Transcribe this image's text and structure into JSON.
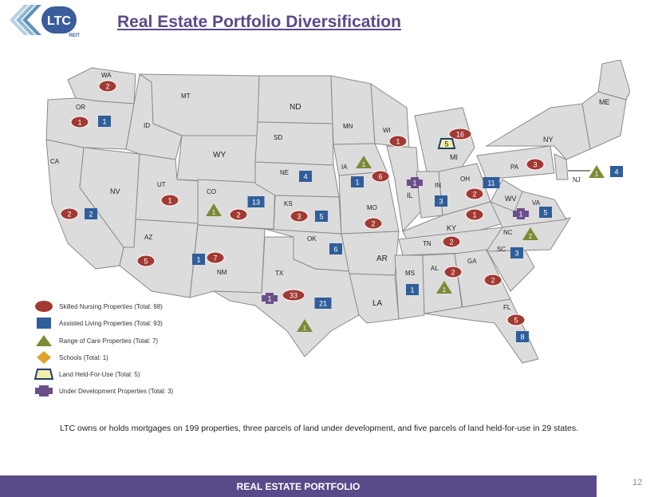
{
  "brand": {
    "logo_text": "LTC",
    "logo_sub": "REIT"
  },
  "title": "Real Estate Portfolio Diversification",
  "colors": {
    "snf": "#a23a32",
    "alf": "#2f5e9b",
    "roc": "#7a8b35",
    "school": "#e1a22b",
    "land": "#f3eea9",
    "dev": "#6b4f8a",
    "footer": "#5b4a8a"
  },
  "states": {
    "WA": "WA",
    "OR": "OR",
    "CA": "CA",
    "NV": "NV",
    "ID": "ID",
    "MT": "MT",
    "WY": "WY",
    "UT": "UT",
    "AZ": "AZ",
    "CO": "CO",
    "NM": "NM",
    "ND": "ND",
    "SD": "SD",
    "NE": "NE",
    "KS": "KS",
    "OK": "OK",
    "TX": "TX",
    "MN": "MN",
    "IA": "IA",
    "MO": "MO",
    "AR": "AR",
    "LA": "LA",
    "WI": "WI",
    "IL": "IL",
    "MI": "MI",
    "IN": "IN",
    "OH": "OH",
    "KY": "KY",
    "TN": "TN",
    "MS": "MS",
    "AL": "AL",
    "GA": "GA",
    "FL": "FL",
    "SC": "SC",
    "NC": "NC",
    "VA": "VA",
    "WV": "WV",
    "PA": "PA",
    "NY": "NY",
    "NJ": "NJ",
    "ME": "ME"
  },
  "markers": [
    {
      "type": "snf",
      "state": "WA",
      "value": "2"
    },
    {
      "type": "snf",
      "state": "OR",
      "value": "1"
    },
    {
      "type": "alf",
      "state": "OR",
      "value": "1"
    },
    {
      "type": "snf",
      "state": "CA",
      "value": "2"
    },
    {
      "type": "alf",
      "state": "CA",
      "value": "2"
    },
    {
      "type": "snf",
      "state": "UT",
      "value": "1"
    },
    {
      "type": "snf",
      "state": "AZ",
      "value": "5"
    },
    {
      "type": "alf",
      "state": "AZ",
      "value": "1"
    },
    {
      "type": "roc",
      "state": "CO",
      "value": "1"
    },
    {
      "type": "snf",
      "state": "CO",
      "value": "2"
    },
    {
      "type": "alf",
      "state": "CO",
      "value": "13"
    },
    {
      "type": "snf",
      "state": "NM",
      "value": "7"
    },
    {
      "type": "alf",
      "state": "NE",
      "value": "4"
    },
    {
      "type": "snf",
      "state": "KS",
      "value": "3"
    },
    {
      "type": "alf",
      "state": "KS",
      "value": "5"
    },
    {
      "type": "alf",
      "state": "OK",
      "value": "6"
    },
    {
      "type": "dev",
      "state": "TX",
      "value": "1"
    },
    {
      "type": "snf",
      "state": "TX",
      "value": "33"
    },
    {
      "type": "alf",
      "state": "TX",
      "value": "21"
    },
    {
      "type": "roc",
      "state": "TX",
      "value": "1"
    },
    {
      "type": "roc",
      "state": "IA",
      "value": "1"
    },
    {
      "type": "snf",
      "state": "IA",
      "value": "6"
    },
    {
      "type": "alf",
      "state": "IA",
      "value": "1"
    },
    {
      "type": "dev",
      "state": "IL",
      "value": "1"
    },
    {
      "type": "snf",
      "state": "MO",
      "value": "2"
    },
    {
      "type": "snf",
      "state": "WI",
      "value": "1"
    },
    {
      "type": "snf",
      "state": "MI",
      "value": "16"
    },
    {
      "type": "land",
      "state": "MI",
      "value": "5"
    },
    {
      "type": "alf",
      "state": "IN",
      "value": "3"
    },
    {
      "type": "alf",
      "state": "OH",
      "value": "11"
    },
    {
      "type": "snf",
      "state": "OH",
      "value": "2"
    },
    {
      "type": "snf",
      "state": "KY",
      "value": "1"
    },
    {
      "type": "snf",
      "state": "TN",
      "value": "2"
    },
    {
      "type": "alf",
      "state": "MS",
      "value": "1"
    },
    {
      "type": "snf",
      "state": "AL",
      "value": "2"
    },
    {
      "type": "roc",
      "state": "AL",
      "value": "1"
    },
    {
      "type": "snf",
      "state": "GA",
      "value": "2"
    },
    {
      "type": "snf",
      "state": "FL",
      "value": "5"
    },
    {
      "type": "alf",
      "state": "FL",
      "value": "8"
    },
    {
      "type": "alf",
      "state": "SC",
      "value": "3"
    },
    {
      "type": "roc",
      "state": "SC",
      "value": "2"
    },
    {
      "type": "dev",
      "state": "SC",
      "value": "1"
    },
    {
      "type": "alf",
      "state": "NC",
      "value": "5"
    },
    {
      "type": "snf",
      "state": "VA",
      "value": "3"
    },
    {
      "type": "roc",
      "state": "VA",
      "value": "1"
    },
    {
      "type": "alf",
      "state": "PA",
      "value": "4"
    },
    {
      "type": "alf",
      "state": "NJ",
      "value": "4"
    },
    {
      "type": "school",
      "state": "NJ",
      "value": "1"
    }
  ],
  "legend": [
    {
      "type": "snf",
      "label": "Skilled Nursing Properties (Total:  98)"
    },
    {
      "type": "alf",
      "label": "Assisted Living Properties (Total:  93)"
    },
    {
      "type": "roc",
      "label": "Range of Care Properties  (Total: 7)"
    },
    {
      "type": "school",
      "label": "Schools (Total:  1)"
    },
    {
      "type": "land",
      "label": "Land Held-For-Use  (Total: 5)"
    },
    {
      "type": "dev",
      "label": "Under Development Properties  (Total: 3)"
    }
  ],
  "caption": "LTC owns or holds mortgages on 199 properties, three parcels of land under development, and five parcels of land held-for-use in 29 states.",
  "footer": "REAL ESTATE PORTFOLIO",
  "page_number": "12"
}
